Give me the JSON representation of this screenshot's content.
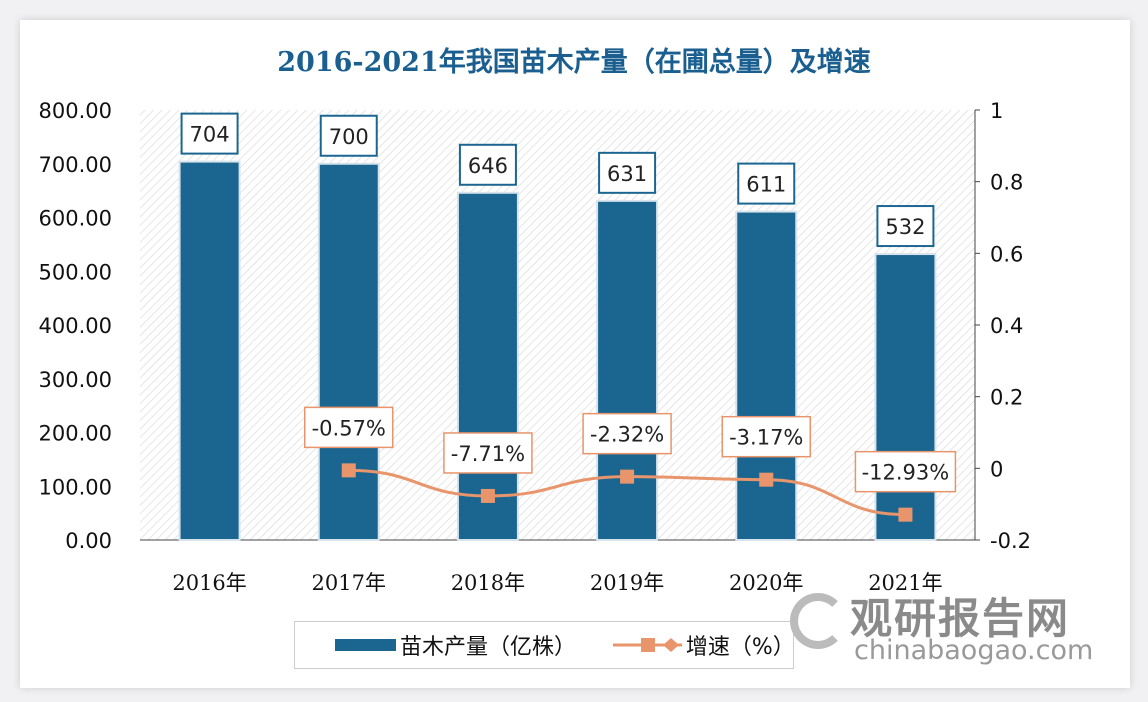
{
  "chart_data": {
    "type": "bar+line",
    "title": "2016-2021年我国苗木产量（在圃总量）及增速",
    "categories": [
      "2016年",
      "2017年",
      "2018年",
      "2019年",
      "2020年",
      "2021年"
    ],
    "series": [
      {
        "name": "苗木产量（亿株）",
        "type": "bar",
        "axis": "left",
        "values": [
          704,
          700,
          646,
          631,
          611,
          532
        ],
        "labels": [
          "704",
          "700",
          "646",
          "631",
          "611",
          "532"
        ],
        "color": "#1b6690"
      },
      {
        "name": "增速（%）",
        "type": "line",
        "axis": "right",
        "values": [
          null,
          -0.57,
          -7.71,
          -2.32,
          -3.17,
          -12.93
        ],
        "labels": [
          "",
          "-0.57%",
          "-7.71%",
          "-2.32%",
          "-3.17%",
          "-12.93%"
        ],
        "color": "#e8956b"
      }
    ],
    "left_axis": {
      "range": [
        0,
        800
      ],
      "ticks": [
        "0.00",
        "100.00",
        "200.00",
        "300.00",
        "400.00",
        "500.00",
        "600.00",
        "700.00",
        "800.00"
      ]
    },
    "right_axis": {
      "range": [
        -0.2,
        1
      ],
      "ticks": [
        "-0.2",
        "0",
        "0.2",
        "0.4",
        "0.6",
        "0.8",
        "1"
      ]
    },
    "legend": "bottom"
  },
  "watermark": {
    "cn": "观研报告网",
    "en": "chinabaogao.com"
  }
}
